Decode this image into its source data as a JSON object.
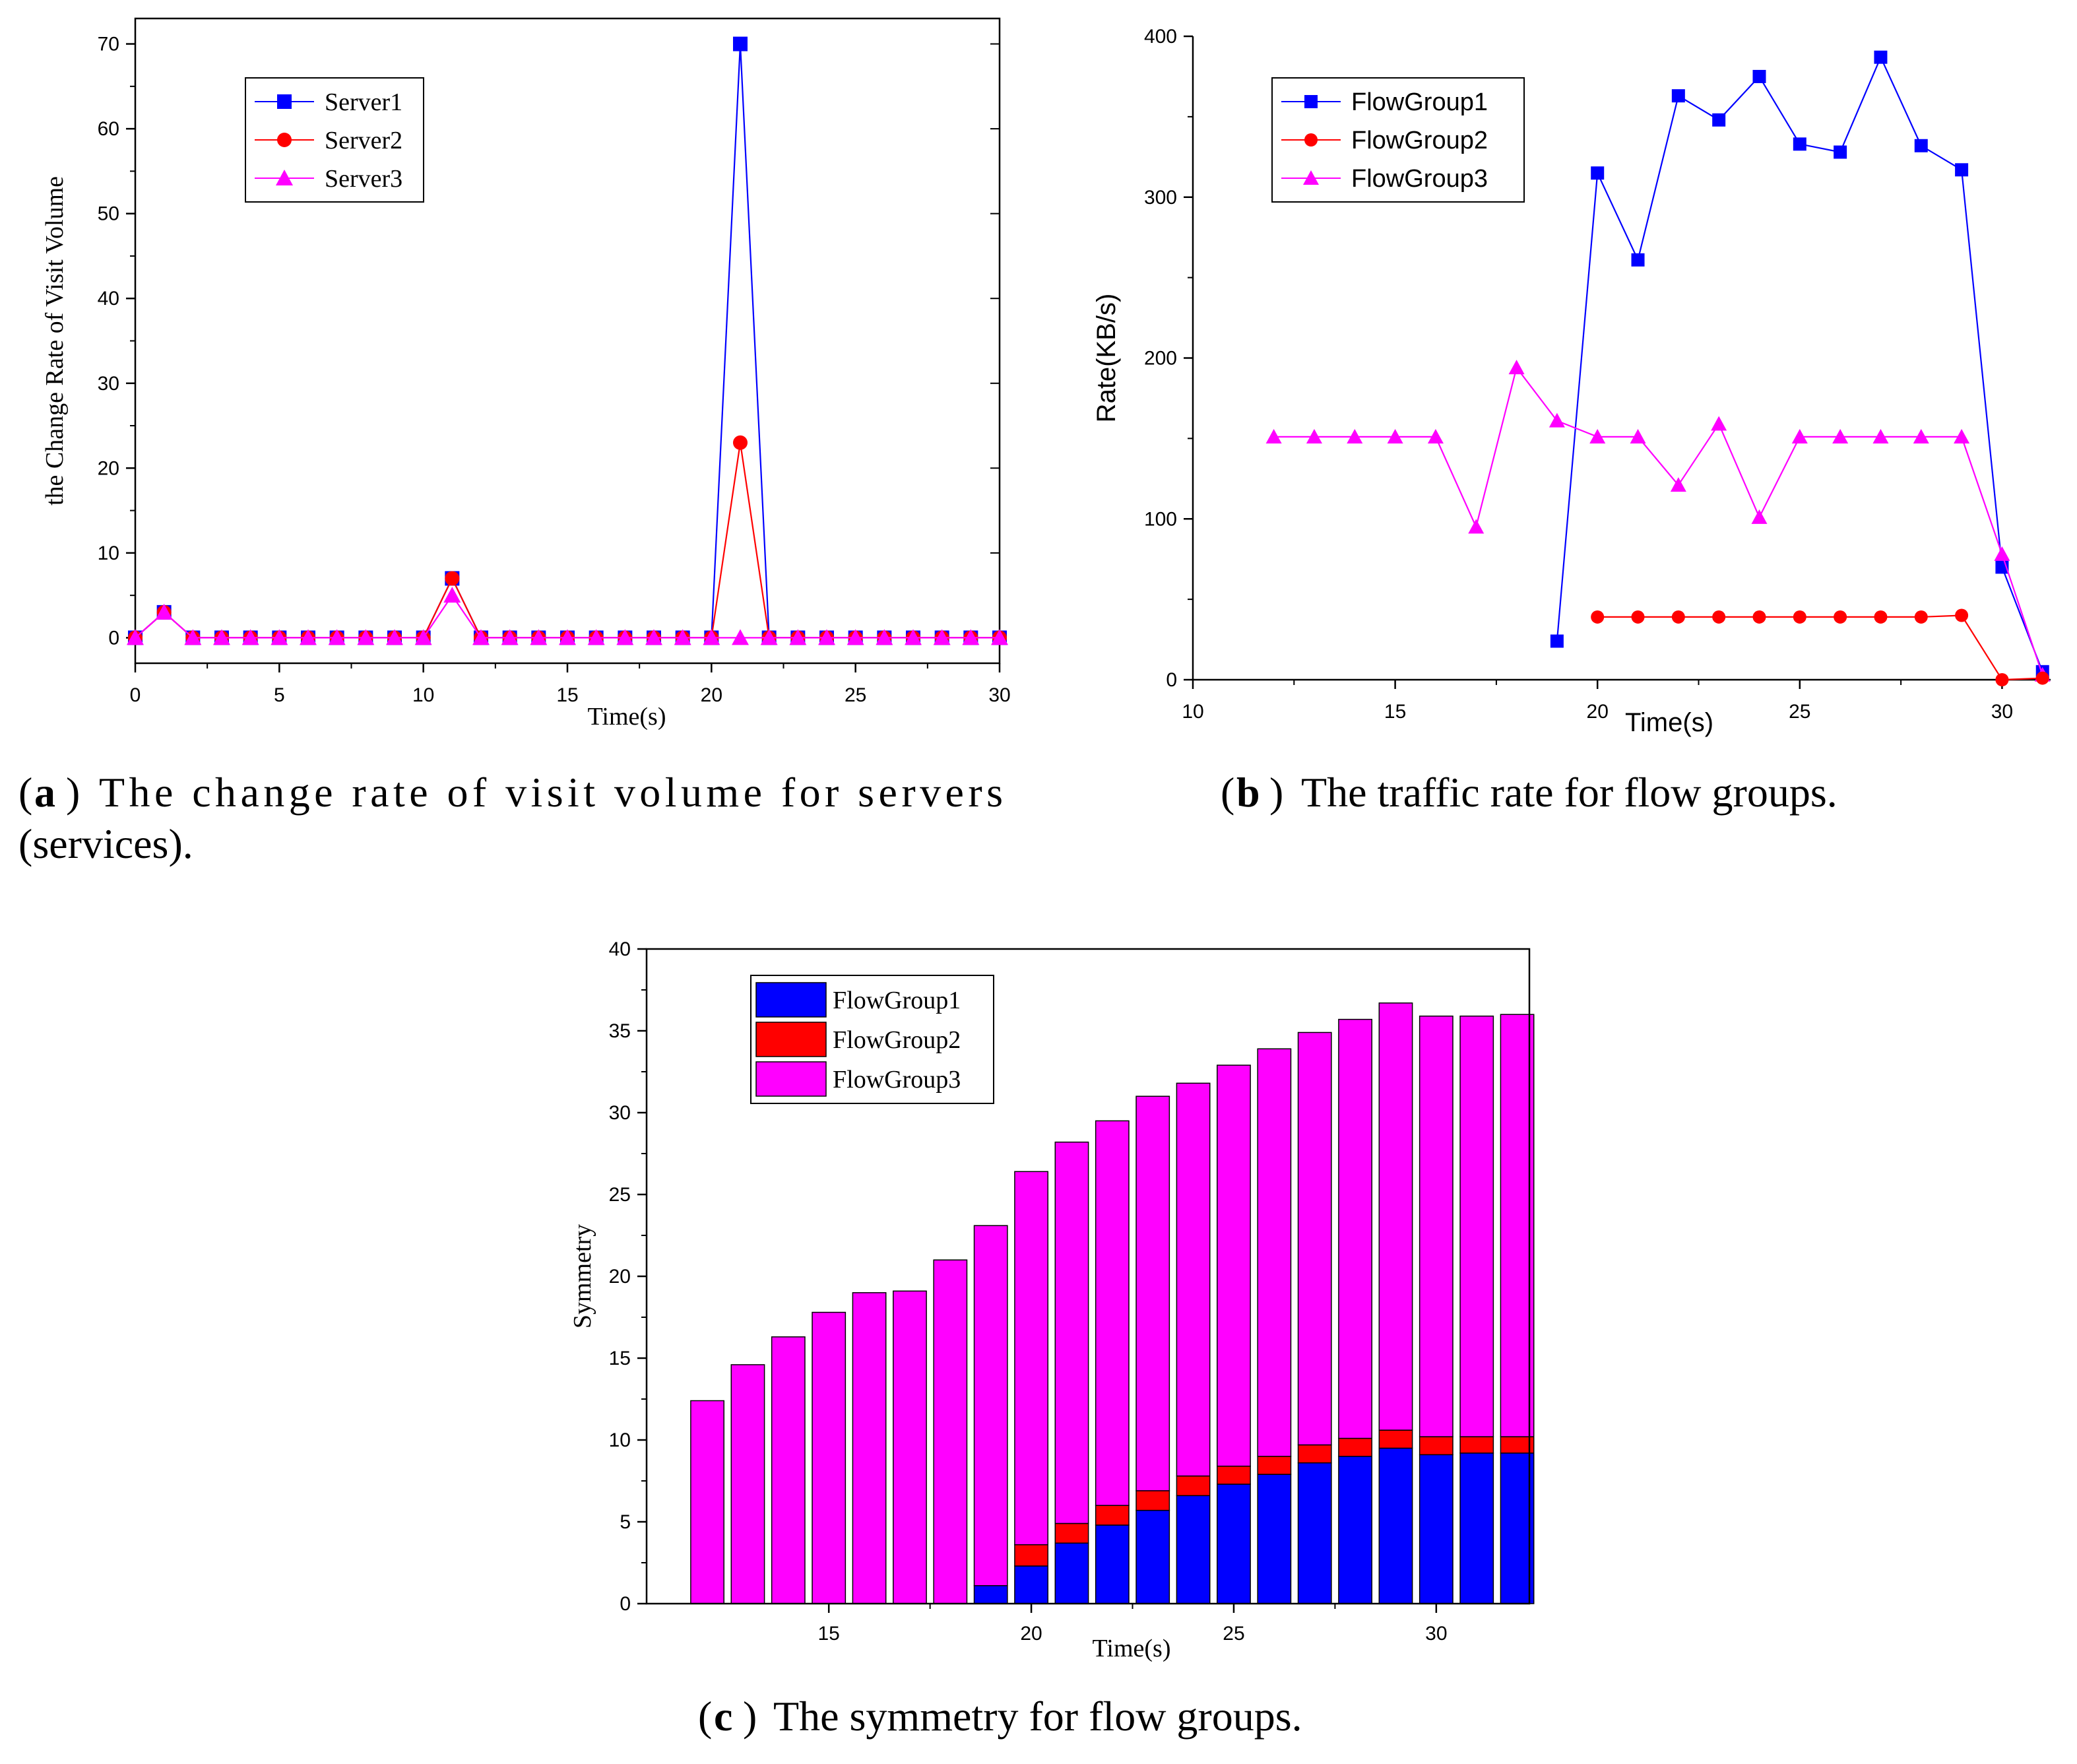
{
  "colors": {
    "blue": "#0000ff",
    "red": "#ff0000",
    "magenta": "#ff00ff",
    "axis": "#000000"
  },
  "captions": {
    "a": {
      "label": "a",
      "text_line1": "The change rate of visit volume for servers",
      "text_line2": "(services)."
    },
    "b": {
      "label": "b",
      "text": "The traffic rate for flow groups."
    },
    "c": {
      "label": "c",
      "text": "The symmetry for flow groups."
    }
  },
  "chart_data": [
    {
      "type": "line",
      "panel": "a",
      "xlabel": "Time(s)",
      "ylabel": "the Change Rate of Visit Volume",
      "xlim": [
        0,
        30
      ],
      "ylim": [
        -3,
        73
      ],
      "xticks": [
        0,
        5,
        10,
        15,
        20,
        25,
        30
      ],
      "yticks": [
        0,
        10,
        20,
        30,
        40,
        50,
        60,
        70
      ],
      "legend_position": "top-left",
      "series": [
        {
          "name": "Server1",
          "color": "#0000ff",
          "marker": "square",
          "x": [
            0,
            1,
            2,
            3,
            4,
            5,
            6,
            7,
            8,
            9,
            10,
            11,
            12,
            13,
            14,
            15,
            16,
            17,
            18,
            19,
            20,
            21,
            22,
            23,
            24,
            25,
            26,
            27,
            28,
            29,
            30
          ],
          "y": [
            0,
            3,
            0,
            0,
            0,
            0,
            0,
            0,
            0,
            0,
            0,
            7,
            0,
            0,
            0,
            0,
            0,
            0,
            0,
            0,
            0,
            70,
            0,
            0,
            0,
            0,
            0,
            0,
            0,
            0,
            0
          ]
        },
        {
          "name": "Server2",
          "color": "#ff0000",
          "marker": "circle",
          "x": [
            0,
            1,
            2,
            3,
            4,
            5,
            6,
            7,
            8,
            9,
            10,
            11,
            12,
            13,
            14,
            15,
            16,
            17,
            18,
            19,
            20,
            21,
            22,
            23,
            24,
            25,
            26,
            27,
            28,
            29,
            30
          ],
          "y": [
            0,
            3,
            0,
            0,
            0,
            0,
            0,
            0,
            0,
            0,
            0,
            7,
            0,
            0,
            0,
            0,
            0,
            0,
            0,
            0,
            0,
            23,
            0,
            0,
            0,
            0,
            0,
            0,
            0,
            0,
            0
          ]
        },
        {
          "name": "Server3",
          "color": "#ff00ff",
          "marker": "triangle",
          "x": [
            0,
            1,
            2,
            3,
            4,
            5,
            6,
            7,
            8,
            9,
            10,
            11,
            12,
            13,
            14,
            15,
            16,
            17,
            18,
            19,
            20,
            21,
            22,
            23,
            24,
            25,
            26,
            27,
            28,
            29,
            30
          ],
          "y": [
            0,
            3,
            0,
            0,
            0,
            0,
            0,
            0,
            0,
            0,
            0,
            5,
            0,
            0,
            0,
            0,
            0,
            0,
            0,
            0,
            0,
            0,
            0,
            0,
            0,
            0,
            0,
            0,
            0,
            0,
            0
          ]
        }
      ]
    },
    {
      "type": "line",
      "panel": "b",
      "xlabel": "Time(s)",
      "ylabel": "Rate(KB/s)",
      "xlim": [
        10,
        31.2
      ],
      "ylim": [
        0,
        400
      ],
      "xticks": [
        10,
        15,
        20,
        25,
        30
      ],
      "yticks": [
        0,
        100,
        200,
        300,
        400
      ],
      "legend_position": "top-left",
      "series": [
        {
          "name": "FlowGroup1",
          "color": "#0000ff",
          "marker": "square",
          "x": [
            19,
            20,
            21,
            22,
            23,
            24,
            25,
            26,
            27,
            28,
            29,
            30,
            31
          ],
          "y": [
            24,
            315,
            261,
            363,
            348,
            375,
            333,
            328,
            387,
            332,
            317,
            70,
            5
          ]
        },
        {
          "name": "FlowGroup2",
          "color": "#ff0000",
          "marker": "circle",
          "x": [
            20,
            21,
            22,
            23,
            24,
            25,
            26,
            27,
            28,
            29,
            30,
            31
          ],
          "y": [
            39,
            39,
            39,
            39,
            39,
            39,
            39,
            39,
            39,
            40,
            0,
            1
          ]
        },
        {
          "name": "FlowGroup3",
          "color": "#ff00ff",
          "marker": "triangle",
          "x": [
            12,
            13,
            14,
            15,
            16,
            17,
            18,
            19,
            20,
            21,
            22,
            23,
            24,
            25,
            26,
            27,
            28,
            29,
            30,
            31
          ],
          "y": [
            151,
            151,
            151,
            151,
            151,
            95,
            194,
            161,
            151,
            151,
            121,
            159,
            101,
            151,
            151,
            151,
            151,
            151,
            78,
            3
          ]
        }
      ]
    },
    {
      "type": "bar",
      "stacked": true,
      "panel": "c",
      "xlabel": "Time(s)",
      "ylabel": "Symmetry",
      "xlim": [
        10.5,
        32.3
      ],
      "ylim": [
        0,
        40
      ],
      "xticks": [
        15,
        20,
        25,
        30
      ],
      "yticks": [
        0,
        5,
        10,
        15,
        20,
        25,
        30,
        35,
        40
      ],
      "legend_position": "top-left",
      "categories": [
        12,
        13,
        14,
        15,
        16,
        17,
        18,
        19,
        20,
        21,
        22,
        23,
        24,
        25,
        26,
        27,
        28,
        29,
        30,
        31,
        32
      ],
      "series": [
        {
          "name": "FlowGroup1",
          "color": "#0000ff",
          "values": [
            0,
            0,
            0,
            0,
            0,
            0,
            0,
            1.1,
            2.3,
            3.7,
            4.8,
            5.7,
            6.6,
            7.3,
            7.9,
            8.6,
            9.0,
            9.5,
            9.1,
            9.2,
            9.2
          ]
        },
        {
          "name": "FlowGroup2",
          "color": "#ff0000",
          "values": [
            0,
            0,
            0,
            0,
            0,
            0,
            0,
            0,
            1.3,
            1.2,
            1.2,
            1.2,
            1.2,
            1.1,
            1.1,
            1.1,
            1.1,
            1.1,
            1.1,
            1.0,
            1.0
          ]
        },
        {
          "name": "FlowGroup3",
          "color": "#ff00ff",
          "values": [
            12.4,
            14.6,
            16.3,
            17.8,
            19.0,
            19.1,
            21.0,
            22.0,
            22.8,
            23.3,
            23.5,
            24.1,
            24.0,
            24.5,
            24.9,
            25.2,
            25.6,
            26.1,
            25.7,
            25.7,
            25.8
          ]
        }
      ]
    }
  ]
}
